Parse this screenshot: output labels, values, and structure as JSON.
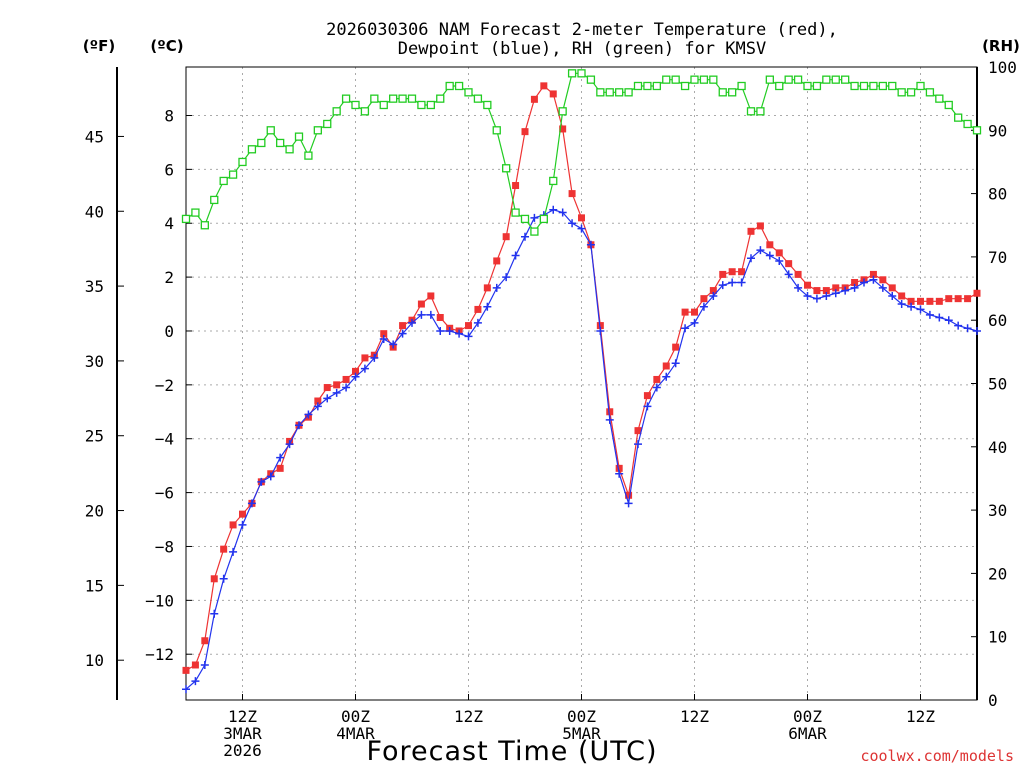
{
  "chart_data": {
    "type": "line",
    "title_line1": "2026030306 NAM Forecast 2-meter Temperature (red),",
    "title_line2": "Dewpoint (blue), RH (green) for KMSV",
    "xlabel": "Forecast Time (UTC)",
    "unit_label_f": "(ºF)",
    "unit_label_c": "(ºC)",
    "unit_label_rh": "(RH)",
    "credit": "coolwx.com/models",
    "x_unit": "hours since 2026-03-03 06Z",
    "xlim": [
      0,
      84
    ],
    "ylim_c": [
      -13.7,
      9.8
    ],
    "ylim_f": [
      7.34,
      49.64
    ],
    "ylim_rh": [
      0,
      100
    ],
    "x_ticks": [
      {
        "hour": 6,
        "l1": "12Z",
        "l2": "3MAR",
        "l3": "2026"
      },
      {
        "hour": 18,
        "l1": "00Z",
        "l2": "4MAR",
        "l3": ""
      },
      {
        "hour": 30,
        "l1": "12Z",
        "l2": "",
        "l3": ""
      },
      {
        "hour": 42,
        "l1": "00Z",
        "l2": "5MAR",
        "l3": ""
      },
      {
        "hour": 54,
        "l1": "12Z",
        "l2": "",
        "l3": ""
      },
      {
        "hour": 66,
        "l1": "00Z",
        "l2": "6MAR",
        "l3": ""
      },
      {
        "hour": 78,
        "l1": "12Z",
        "l2": "",
        "l3": ""
      }
    ],
    "c_ticks": [
      -12,
      -10,
      -8,
      -6,
      -4,
      -2,
      0,
      2,
      4,
      6,
      8
    ],
    "c_tick_labels": [
      "−12",
      "−10",
      "−8",
      "−6",
      "−4",
      "−2",
      "0",
      "2",
      "4",
      "6",
      "8"
    ],
    "f_ticks": [
      10,
      15,
      20,
      25,
      30,
      35,
      40,
      45
    ],
    "f_tick_labels": [
      "10",
      "15",
      "20",
      "25",
      "30",
      "35",
      "40",
      "45"
    ],
    "rh_ticks": [
      0,
      10,
      20,
      30,
      40,
      50,
      60,
      70,
      80,
      90,
      100
    ],
    "rh_tick_labels": [
      "0",
      "10",
      "20",
      "30",
      "40",
      "50",
      "60",
      "70",
      "80",
      "90",
      "100"
    ],
    "series": [
      {
        "name": "Temperature (°C)",
        "color": "#ee3333",
        "marker": "filled-square",
        "axis": "c",
        "values": [
          -12.6,
          -12.4,
          -11.5,
          -9.2,
          -8.1,
          -7.2,
          -6.8,
          -6.4,
          -5.6,
          -5.3,
          -5.1,
          -4.1,
          -3.5,
          -3.2,
          -2.6,
          -2.1,
          -2.0,
          -1.8,
          -1.5,
          -1.0,
          -0.9,
          -0.1,
          -0.6,
          0.2,
          0.4,
          1.0,
          1.3,
          0.5,
          0.1,
          0.0,
          0.2,
          0.8,
          1.6,
          2.6,
          3.5,
          5.4,
          7.4,
          8.6,
          9.1,
          8.8,
          7.5,
          5.1,
          4.2,
          3.2,
          0.2,
          -3.0,
          -5.1,
          -6.1,
          -3.7,
          -2.4,
          -1.8,
          -1.3,
          -0.6,
          0.7,
          0.7,
          1.2,
          1.5,
          2.1,
          2.2,
          2.2,
          3.7,
          3.9,
          3.2,
          2.9,
          2.5,
          2.1,
          1.7,
          1.5,
          1.5,
          1.6,
          1.6,
          1.8,
          1.9,
          2.1,
          1.9,
          1.6,
          1.3,
          1.1,
          1.1,
          1.1,
          1.1,
          1.2,
          1.2,
          1.2,
          1.4
        ]
      },
      {
        "name": "Dewpoint (°C)",
        "color": "#2233ee",
        "marker": "plus",
        "axis": "c",
        "values": [
          -13.3,
          -13.0,
          -12.4,
          -10.5,
          -9.2,
          -8.2,
          -7.2,
          -6.4,
          -5.6,
          -5.4,
          -4.7,
          -4.2,
          -3.5,
          -3.1,
          -2.8,
          -2.5,
          -2.3,
          -2.1,
          -1.7,
          -1.4,
          -1.0,
          -0.3,
          -0.5,
          -0.1,
          0.3,
          0.6,
          0.6,
          0.0,
          0.0,
          -0.1,
          -0.2,
          0.3,
          0.9,
          1.6,
          2.0,
          2.8,
          3.5,
          4.2,
          4.3,
          4.5,
          4.4,
          4.0,
          3.8,
          3.2,
          0.0,
          -3.3,
          -5.3,
          -6.4,
          -4.2,
          -2.8,
          -2.1,
          -1.7,
          -1.2,
          0.1,
          0.3,
          0.9,
          1.3,
          1.7,
          1.8,
          1.8,
          2.7,
          3.0,
          2.8,
          2.6,
          2.1,
          1.6,
          1.3,
          1.2,
          1.3,
          1.4,
          1.5,
          1.6,
          1.8,
          1.9,
          1.6,
          1.3,
          1.0,
          0.9,
          0.8,
          0.6,
          0.5,
          0.4,
          0.2,
          0.1,
          0.0
        ]
      },
      {
        "name": "RH (%)",
        "color": "#22cc22",
        "marker": "open-square",
        "axis": "rh",
        "values": [
          76,
          77,
          75,
          79,
          82,
          83,
          85,
          87,
          88,
          90,
          88,
          87,
          89,
          86,
          90,
          91,
          93,
          95,
          94,
          93,
          95,
          94,
          95,
          95,
          95,
          94,
          94,
          95,
          97,
          97,
          96,
          95,
          94,
          90,
          84,
          77,
          76,
          74,
          76,
          82,
          93,
          99,
          99,
          98,
          96,
          96,
          96,
          96,
          97,
          97,
          97,
          98,
          98,
          97,
          98,
          98,
          98,
          96,
          96,
          97,
          93,
          93,
          98,
          97,
          98,
          98,
          97,
          97,
          98,
          98,
          98,
          97,
          97,
          97,
          97,
          97,
          96,
          96,
          97,
          96,
          95,
          94,
          92,
          91,
          90
        ]
      }
    ]
  }
}
